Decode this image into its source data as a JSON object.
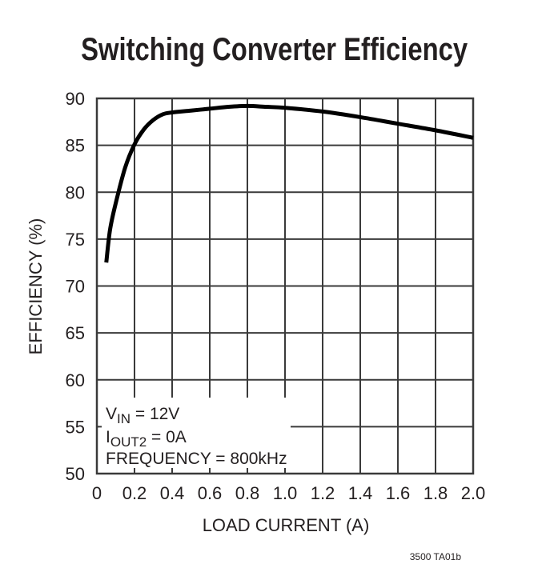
{
  "chart_data": {
    "type": "line",
    "title": "Switching Converter Efficiency",
    "xlabel": "LOAD CURRENT (A)",
    "ylabel": "EFFICIENCY (%)",
    "xlim": [
      0,
      2.0
    ],
    "ylim": [
      50,
      90
    ],
    "xticks": [
      "0",
      "0.2",
      "0.4",
      "0.6",
      "0.8",
      "1.0",
      "1.2",
      "1.4",
      "1.6",
      "1.8",
      "2.0"
    ],
    "yticks": [
      "90",
      "85",
      "80",
      "75",
      "70",
      "65",
      "60",
      "55",
      "50"
    ],
    "grid": true,
    "series": [
      {
        "name": "Efficiency",
        "x": [
          0.05,
          0.07,
          0.1,
          0.15,
          0.2,
          0.25,
          0.3,
          0.35,
          0.4,
          0.5,
          0.6,
          0.7,
          0.8,
          0.9,
          1.0,
          1.2,
          1.4,
          1.6,
          1.8,
          2.0
        ],
        "y": [
          72.5,
          76.0,
          78.8,
          82.6,
          85.1,
          86.7,
          87.7,
          88.3,
          88.5,
          88.7,
          88.9,
          89.1,
          89.2,
          89.1,
          89.0,
          88.6,
          88.0,
          87.3,
          86.6,
          85.8
        ]
      }
    ],
    "annotations": [
      {
        "label": "V",
        "sub": "IN",
        "rest": " = 12V"
      },
      {
        "label": "I",
        "sub": "OUT2",
        "rest": " = 0A"
      },
      {
        "label": "FREQUENCY = 800kHz",
        "sub": "",
        "rest": ""
      }
    ],
    "footnote": "3500 TA01b"
  },
  "colors": {
    "line": "#000000",
    "grid": "#3a3a3a",
    "text": "#231f20",
    "background": "#ffffff"
  }
}
